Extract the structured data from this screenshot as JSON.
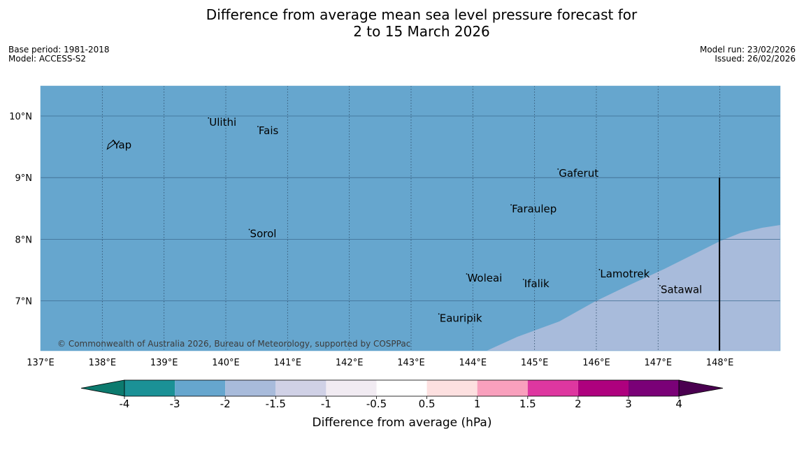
{
  "title": "Difference from average mean sea level pressure forecast for\n2 to 15 March 2026",
  "meta_left": {
    "base_period": "Base period: 1981-2018",
    "model": "Model: ACCESS-S2"
  },
  "meta_right": {
    "model_run": "Model run: 23/02/2026",
    "issued": "Issued: 26/02/2026"
  },
  "map": {
    "copyright": "© Commonwealth of Australia 2026, Bureau of Meteorology, supported by COSPPac",
    "lon_range": [
      137,
      149
    ],
    "lat_range": [
      6.2,
      10.5
    ],
    "lon_ticks": [
      137,
      138,
      139,
      140,
      141,
      142,
      143,
      144,
      145,
      146,
      147,
      148
    ],
    "lon_labels": [
      "137°E",
      "138°E",
      "139°E",
      "140°E",
      "141°E",
      "142°E",
      "143°E",
      "144°E",
      "145°E",
      "146°E",
      "147°E",
      "148°E"
    ],
    "lat_ticks": [
      10,
      9,
      8,
      7
    ],
    "lat_labels": [
      "10°N",
      "9°N",
      "8°N",
      "7°N"
    ],
    "background_category_color": "#66a6ce",
    "region_category_color": "#a8bbdb",
    "boundary_line": {
      "lon": 148.0,
      "lat_top": 9.0,
      "lat_bottom": 6.2
    },
    "places": [
      {
        "name": "Ulithi",
        "lon": 139.72,
        "lat": 9.9
      },
      {
        "name": "Fais",
        "lon": 140.52,
        "lat": 9.76
      },
      {
        "name": "Yap",
        "lon": 138.17,
        "lat": 9.53
      },
      {
        "name": "Gaferut",
        "lon": 145.38,
        "lat": 9.07
      },
      {
        "name": "Faraulep",
        "lon": 144.62,
        "lat": 8.49
      },
      {
        "name": "Sorol",
        "lon": 140.38,
        "lat": 8.09
      },
      {
        "name": "Woleai",
        "lon": 143.9,
        "lat": 7.37
      },
      {
        "name": "Ifalik",
        "lon": 144.82,
        "lat": 7.28
      },
      {
        "name": "Lamotrek",
        "lon": 146.05,
        "lat": 7.44
      },
      {
        "name": "Satawal",
        "lon": 147.03,
        "lat": 7.18
      },
      {
        "name": "Eauripik",
        "lon": 143.45,
        "lat": 6.72
      }
    ]
  },
  "colorbar": {
    "title": "Difference from average (hPa)",
    "tick_labels": [
      "-4",
      "-3",
      "-2",
      "-1.5",
      "-1",
      "-0.5",
      "0.5",
      "1",
      "1.5",
      "2",
      "3",
      "4"
    ],
    "under_color": "#0c7a6e",
    "over_color": "#4a0050",
    "colors": [
      "#1b9196",
      "#66a6ce",
      "#a8bbdb",
      "#d0d1e6",
      "#f1ebf2",
      "#ffffff",
      "#fde0e0",
      "#f9a0bd",
      "#de37a0",
      "#ae017e",
      "#7a0177"
    ]
  }
}
